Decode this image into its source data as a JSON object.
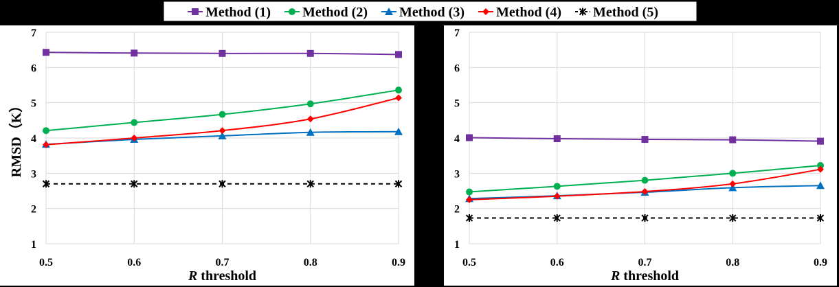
{
  "legend": {
    "entries": [
      {
        "label": "Method (1)",
        "color": "#7030A0",
        "marker": "square"
      },
      {
        "label": "Method (2)",
        "color": "#00B050",
        "marker": "circle"
      },
      {
        "label": "Method (3)",
        "color": "#0070C0",
        "marker": "triangle"
      },
      {
        "label": "Method (4)",
        "color": "#FF0000",
        "marker": "diamond"
      },
      {
        "label": "Method (5)",
        "color": "#000000",
        "marker": "asterisk"
      }
    ]
  },
  "chart_data": [
    {
      "type": "line",
      "xlabel_prefix": "R",
      "xlabel_rest": " threshold",
      "ylabel": "RMSD（K）",
      "x": [
        0.5,
        0.6,
        0.7,
        0.8,
        0.9
      ],
      "xticks": [
        "0.5",
        "0.6",
        "0.7",
        "0.8",
        "0.9"
      ],
      "ylim": [
        1,
        7
      ],
      "yticks": [
        "1",
        "2",
        "3",
        "4",
        "5",
        "6",
        "7"
      ],
      "grid": true,
      "legend_position": "top",
      "series": [
        {
          "name": "Method (1)",
          "values": [
            6.43,
            6.41,
            6.4,
            6.4,
            6.37
          ]
        },
        {
          "name": "Method (2)",
          "values": [
            4.21,
            4.44,
            4.67,
            4.97,
            5.36
          ]
        },
        {
          "name": "Method (3)",
          "values": [
            3.82,
            3.96,
            4.06,
            4.16,
            4.18
          ]
        },
        {
          "name": "Method (4)",
          "values": [
            3.81,
            4.0,
            4.21,
            4.54,
            5.14
          ]
        },
        {
          "name": "Method (5)",
          "values": [
            2.7,
            2.7,
            2.7,
            2.7,
            2.7
          ]
        }
      ]
    },
    {
      "type": "line",
      "xlabel_prefix": "R",
      "xlabel_rest": " threshold",
      "ylabel": "",
      "x": [
        0.5,
        0.6,
        0.7,
        0.8,
        0.9
      ],
      "xticks": [
        "0.5",
        "0.6",
        "0.7",
        "0.8",
        "0.9"
      ],
      "ylim": [
        1,
        7
      ],
      "yticks": [
        "1",
        "2",
        "3",
        "4",
        "5",
        "6",
        "7"
      ],
      "grid": true,
      "legend_position": "top",
      "series": [
        {
          "name": "Method (1)",
          "values": [
            4.01,
            3.98,
            3.96,
            3.95,
            3.91
          ]
        },
        {
          "name": "Method (2)",
          "values": [
            2.47,
            2.63,
            2.8,
            3.0,
            3.22
          ]
        },
        {
          "name": "Method (3)",
          "values": [
            2.28,
            2.36,
            2.46,
            2.59,
            2.65
          ]
        },
        {
          "name": "Method (4)",
          "values": [
            2.25,
            2.35,
            2.48,
            2.7,
            3.11
          ]
        },
        {
          "name": "Method (5)",
          "values": [
            1.73,
            1.73,
            1.73,
            1.73,
            1.73
          ]
        }
      ]
    }
  ]
}
